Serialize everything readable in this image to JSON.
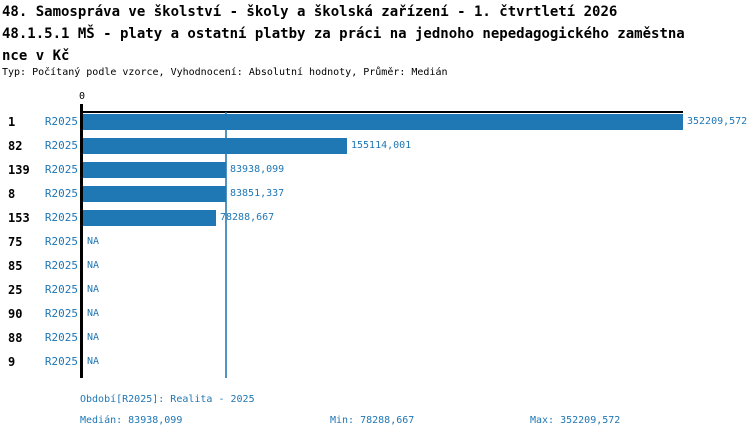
{
  "header": {
    "title_line1": "48. Samospráva ve školství - školy a školská zařízení - 1. čtvrtletí 2026",
    "title_line2": "48.1.5.1 MŠ - platy a ostatní platby za práci na jednoho nepedagogického zaměstna",
    "title_line3": "nce v Kč",
    "subtitle": "Typ: Počítaný podle vzorce, Vyhodnocení: Absolutní hodnoty, Průměr: Medián"
  },
  "chart_data": {
    "type": "bar",
    "orientation": "horizontal",
    "title": "48.1.5.1 MŠ - platy a ostatní platby za práci na jednoho nepedagogického zaměstnance v Kč",
    "categories": [
      "1",
      "82",
      "139",
      "8",
      "153",
      "75",
      "85",
      "25",
      "90",
      "88",
      "9"
    ],
    "series": [
      {
        "name": "R2025",
        "values": [
          352209.572,
          155114.001,
          83938.099,
          83851.337,
          78288.667,
          null,
          null,
          null,
          null,
          null,
          null
        ]
      }
    ],
    "value_labels": [
      "352209,572",
      "155114,001",
      "83938,099",
      "83851,337",
      "78288,667",
      "NA",
      "NA",
      "NA",
      "NA",
      "NA",
      "NA"
    ],
    "xlim": [
      0,
      352209.572
    ],
    "x_axis_zero_label": "0",
    "median_line_value": 83938.099,
    "grid": false,
    "legend_position": "none",
    "bar_color": "#1f77b4",
    "accent_text_color": "#1f77b4"
  },
  "footer": {
    "period": "Období[R2025]: Realita - 2025",
    "median": "Medián: 83938,099",
    "min": "Min: 78288,667",
    "max": "Max: 352209,572"
  }
}
